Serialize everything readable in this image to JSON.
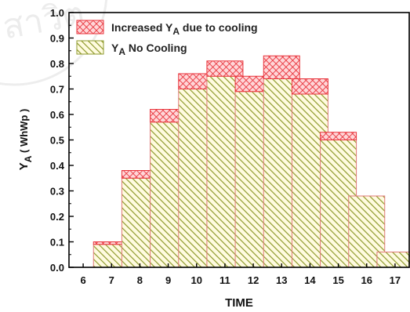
{
  "chart_data": {
    "type": "bar",
    "stacked": true,
    "xlabel": "TIME",
    "ylabel": {
      "main": "Y",
      "sub": "A",
      "unit": " ( WhWp )"
    },
    "categories": [
      "6",
      "7",
      "8",
      "9",
      "10",
      "11",
      "12",
      "13",
      "14",
      "15",
      "16",
      "17"
    ],
    "ylim": [
      0.0,
      1.0
    ],
    "yticks": [
      "0.0",
      "0.1",
      "0.2",
      "0.3",
      "0.4",
      "0.5",
      "0.6",
      "0.7",
      "0.8",
      "0.9",
      "1.0"
    ],
    "series": [
      {
        "key": "no_cooling",
        "legend": {
          "main": "Y",
          "sub": "A",
          "rest": " No Cooling"
        },
        "values": [
          0,
          0.09,
          0.35,
          0.57,
          0.7,
          0.75,
          0.69,
          0.74,
          0.68,
          0.5,
          0.28,
          0.06
        ],
        "color": "#9aa23a",
        "hatch": "diagonal"
      },
      {
        "key": "cooling_increase",
        "legend": {
          "main": "Increased Y",
          "sub": "A",
          "rest": " due to cooling"
        },
        "values": [
          0,
          0.01,
          0.03,
          0.05,
          0.06,
          0.06,
          0.06,
          0.09,
          0.06,
          0.03,
          0.0,
          0.0
        ],
        "color": "#e8333b",
        "hatch": "crosshatch"
      }
    ],
    "legend_position": "top-left",
    "grid": false
  }
}
